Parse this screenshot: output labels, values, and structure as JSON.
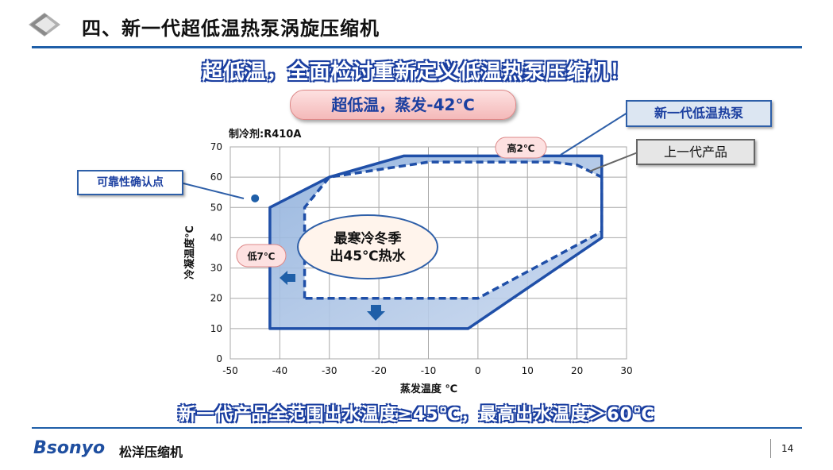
{
  "slide": {
    "title": "四、新一代超低温热泵涡旋压缩机",
    "headline": "超低温，全面检讨重新定义低温热泵压缩机！",
    "pill": "超低温，蒸发-42℃",
    "bottom_banner": "新一代产品全范围出水温度≥45℃，最高出水温度＞60℃",
    "brand": "Bsonyo",
    "brand_cn": "松洋压缩机",
    "page_number": "14"
  },
  "callouts": {
    "new_gen": "新一代低温热泵",
    "prev_gen": "上一代产品",
    "reliability": "可靠性确认点",
    "high": "高2℃",
    "low": "低7℃",
    "winter": "最寒冷冬季\n出45℃热水"
  },
  "chart_data": {
    "type": "area",
    "subtitle": "制冷剂:R410A",
    "xlabel": "蒸发温度 ℃",
    "ylabel": "冷凝温度℃",
    "xlim": [
      -50,
      30
    ],
    "ylim": [
      0,
      70
    ],
    "xticks": [
      -50,
      -40,
      -30,
      -20,
      -10,
      0,
      10,
      20,
      30
    ],
    "yticks": [
      0,
      10,
      20,
      30,
      40,
      50,
      60,
      70
    ],
    "grid": true,
    "series": [
      {
        "name": "新一代低温热泵",
        "style": "solid",
        "color": "#1f4fa8",
        "points": [
          [
            -42,
            10
          ],
          [
            -42,
            50
          ],
          [
            -30,
            60
          ],
          [
            -15,
            67
          ],
          [
            25,
            67
          ],
          [
            25,
            40
          ],
          [
            -2,
            10
          ]
        ]
      },
      {
        "name": "上一代产品",
        "style": "dashed",
        "color": "#1f4fa8",
        "points": [
          [
            -35,
            20
          ],
          [
            -35,
            50
          ],
          [
            -30,
            60
          ],
          [
            -10,
            65
          ],
          [
            15,
            65
          ],
          [
            20,
            64
          ],
          [
            25,
            60
          ],
          [
            25,
            42
          ],
          [
            0,
            20
          ]
        ]
      }
    ],
    "reliability_point": [
      -45,
      53
    ]
  }
}
